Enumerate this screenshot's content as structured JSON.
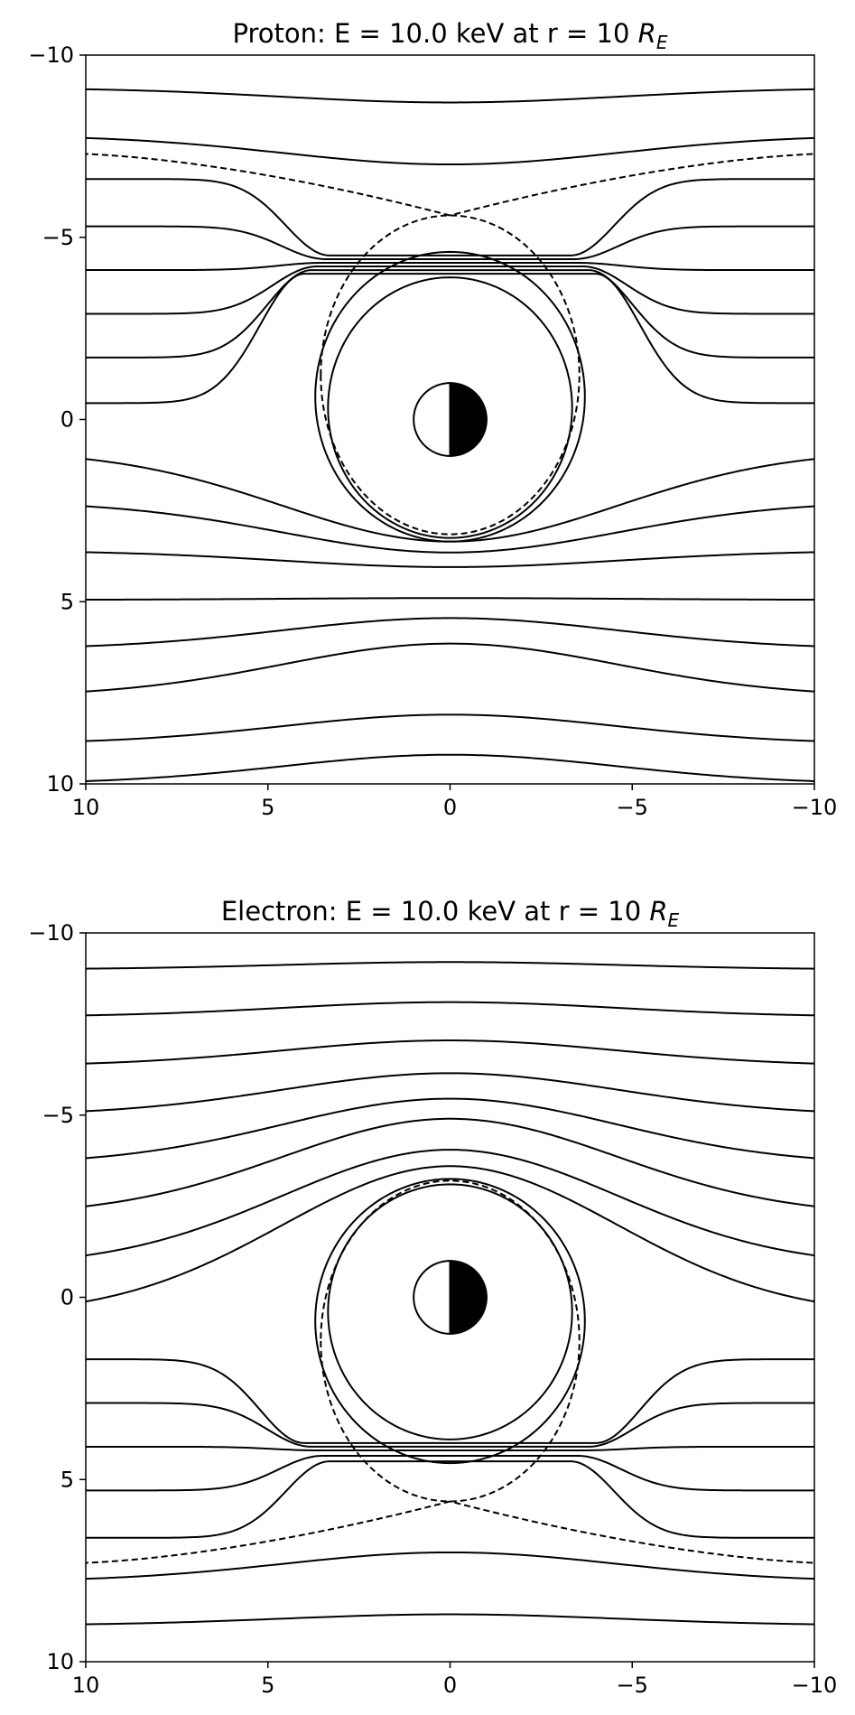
{
  "chart_data": [
    {
      "type": "line",
      "title": "Proton: E = 10.0 keV at r =  10 ",
      "title_symbol": "R",
      "title_subscript": "E",
      "xlim": [
        10,
        -10
      ],
      "ylim": [
        10,
        -10
      ],
      "xticks": [
        10,
        5,
        0,
        -5,
        -10
      ],
      "yticks": [
        -10,
        -5,
        0,
        5,
        10
      ],
      "xtick_labels": [
        "10",
        "5",
        "0",
        "−5",
        "−10"
      ],
      "ytick_labels": [
        "−10",
        "−5",
        "0",
        "5",
        "10"
      ],
      "grid": false,
      "earth": {
        "radius": 1,
        "night_side": "negative-x"
      },
      "separatrix_style": "dashed",
      "open_contours": [
        {
          "far_y": -9.1,
          "center_y": -8.7
        },
        {
          "far_y": -7.8,
          "center_y": -7.0
        },
        {
          "far_y": -6.6,
          "center_y": -4.5,
          "dx": 3.3
        },
        {
          "far_y": -5.3,
          "center_y": -4.4,
          "dx": 3.4
        },
        {
          "far_y": -4.1,
          "center_y": -4.3,
          "dx": 3.5
        },
        {
          "far_y": -2.9,
          "center_y": -4.2,
          "dx": 3.65
        },
        {
          "far_y": -1.7,
          "center_y": -4.1,
          "dx": 3.8
        },
        {
          "far_y": -0.45,
          "center_y": -4.0,
          "dx": 4.0
        },
        {
          "far_y": 0.85,
          "center_y": 3.35
        },
        {
          "far_y": 2.25,
          "center_y": 3.65
        },
        {
          "far_y": 3.6,
          "center_y": 4.05
        },
        {
          "far_y": 4.95,
          "center_y": 4.9
        },
        {
          "far_y": 6.3,
          "center_y": 5.45
        },
        {
          "far_y": 7.6,
          "center_y": 6.15
        },
        {
          "far_y": 8.9,
          "center_y": 8.1
        },
        {
          "far_y": 10.0,
          "center_y": 9.2
        }
      ],
      "closed_contours": [
        {
          "rx": 3.35,
          "top": -3.9,
          "bottom": 3.25
        },
        {
          "rx": 3.7,
          "top": -4.6,
          "bottom": 3.35
        }
      ],
      "separatrix": {
        "x_point_y": -5.6,
        "far_y": -7.3,
        "rx": 3.55,
        "bottom": 3.15
      }
    },
    {
      "type": "line",
      "title": "Electron: E = 10.0 keV at r =  10 ",
      "title_symbol": "R",
      "title_subscript": "E",
      "xlim": [
        10,
        -10
      ],
      "ylim": [
        10,
        -10
      ],
      "xticks": [
        10,
        5,
        0,
        -5,
        -10
      ],
      "yticks": [
        -10,
        -5,
        0,
        5,
        10
      ],
      "xtick_labels": [
        "10",
        "5",
        "0",
        "−5",
        "−10"
      ],
      "ytick_labels": [
        "−10",
        "−5",
        "0",
        "5",
        "10"
      ],
      "grid": false,
      "earth": {
        "radius": 1,
        "night_side": "negative-x"
      },
      "separatrix_style": "dashed",
      "open_contours": [
        {
          "far_y": -9.0,
          "center_y": -9.2
        },
        {
          "far_y": -7.7,
          "center_y": -8.1
        },
        {
          "far_y": -6.35,
          "center_y": -7.05
        },
        {
          "far_y": -5.0,
          "center_y": -6.15
        },
        {
          "far_y": -3.65,
          "center_y": -5.45
        },
        {
          "far_y": -2.25,
          "center_y": -4.9
        },
        {
          "far_y": -0.85,
          "center_y": -4.05
        },
        {
          "far_y": 0.5,
          "center_y": -3.6
        },
        {
          "far_y": 1.7,
          "center_y": 4.0,
          "dx": 4.0
        },
        {
          "far_y": 2.9,
          "center_y": 4.1,
          "dx": 3.8
        },
        {
          "far_y": 4.1,
          "center_y": 4.2,
          "dx": 3.65
        },
        {
          "far_y": 5.3,
          "center_y": 4.35,
          "dx": 3.5
        },
        {
          "far_y": 6.6,
          "center_y": 4.5,
          "dx": 3.3
        },
        {
          "far_y": 7.8,
          "center_y": 7.0
        },
        {
          "far_y": 9.0,
          "center_y": 8.7
        }
      ],
      "closed_contours": [
        {
          "rx": 3.35,
          "top": -3.1,
          "bottom": 3.9
        },
        {
          "rx": 3.7,
          "top": -3.25,
          "bottom": 4.55
        }
      ],
      "separatrix": {
        "x_point_y": 5.6,
        "far_y": 7.3,
        "rx": 3.55,
        "top": -3.2
      }
    }
  ]
}
